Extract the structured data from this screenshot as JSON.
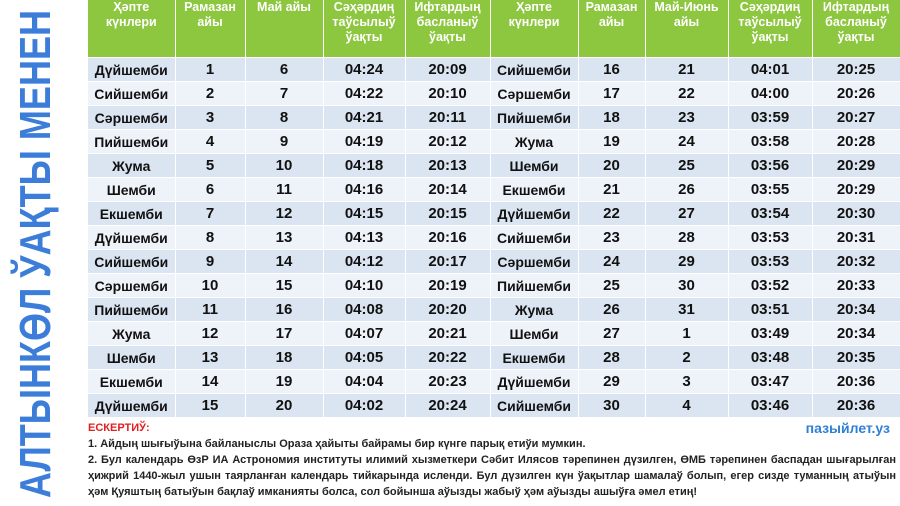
{
  "side_title": "АЛТЫНКӨЛ ЎАҚТЫ МЕНЕН",
  "table": {
    "headers": [
      "Ҳәпте күнлери",
      "Рамазан айы",
      "Май айы",
      "Сәҳәрдиң таўсылыў ўақты",
      "Ифтардың басланыў ўақты",
      "Ҳәпте күнлери",
      "Рамазан айы",
      "Май-Июнь айы",
      "Сәҳәрдиң таўсылыў ўақты",
      "Ифтардың басланыў ўақты"
    ],
    "rows": [
      [
        "Дүйшемби",
        "1",
        "6",
        "04:24",
        "20:09",
        "Сийшемби",
        "16",
        "21",
        "04:01",
        "20:25"
      ],
      [
        "Сийшемби",
        "2",
        "7",
        "04:22",
        "20:10",
        "Сәршемби",
        "17",
        "22",
        "04:00",
        "20:26"
      ],
      [
        "Сәршемби",
        "3",
        "8",
        "04:21",
        "20:11",
        "Пийшемби",
        "18",
        "23",
        "03:59",
        "20:27"
      ],
      [
        "Пийшемби",
        "4",
        "9",
        "04:19",
        "20:12",
        "Жума",
        "19",
        "24",
        "03:58",
        "20:28"
      ],
      [
        "Жума",
        "5",
        "10",
        "04:18",
        "20:13",
        "Шемби",
        "20",
        "25",
        "03:56",
        "20:29"
      ],
      [
        "Шемби",
        "6",
        "11",
        "04:16",
        "20:14",
        "Екшемби",
        "21",
        "26",
        "03:55",
        "20:29"
      ],
      [
        "Екшемби",
        "7",
        "12",
        "04:15",
        "20:15",
        "Дүйшемби",
        "22",
        "27",
        "03:54",
        "20:30"
      ],
      [
        "Дүйшемби",
        "8",
        "13",
        "04:13",
        "20:16",
        "Сийшемби",
        "23",
        "28",
        "03:53",
        "20:31"
      ],
      [
        "Сийшемби",
        "9",
        "14",
        "04:12",
        "20:17",
        "Сәршемби",
        "24",
        "29",
        "03:53",
        "20:32"
      ],
      [
        "Сәршемби",
        "10",
        "15",
        "04:10",
        "20:19",
        "Пийшемби",
        "25",
        "30",
        "03:52",
        "20:33"
      ],
      [
        "Пийшемби",
        "11",
        "16",
        "04:08",
        "20:20",
        "Жума",
        "26",
        "31",
        "03:51",
        "20:34"
      ],
      [
        "Жума",
        "12",
        "17",
        "04:07",
        "20:21",
        "Шемби",
        "27",
        "1",
        "03:49",
        "20:34"
      ],
      [
        "Шемби",
        "13",
        "18",
        "04:05",
        "20:22",
        "Екшемби",
        "28",
        "2",
        "03:48",
        "20:35"
      ],
      [
        "Екшемби",
        "14",
        "19",
        "04:04",
        "20:23",
        "Дүйшемби",
        "29",
        "3",
        "03:47",
        "20:36"
      ],
      [
        "Дүйшемби",
        "15",
        "20",
        "04:02",
        "20:24",
        "Сийшемби",
        "30",
        "4",
        "03:46",
        "20:36"
      ]
    ]
  },
  "notes": {
    "heading": "ЕСКЕРТИЎ:",
    "website": "пазыйлет.уз",
    "items": [
      "1.  Айдың шығыўына байланыслы Ораза ҳайыты байрамы бир күнге парық етиўи мумкин.",
      "2. Бул календарь ӨзР ИА Астрономия институты илимий хызметкери Сәбит Илясов тәрепинен дүзилген, ӨМБ тәрепинен баспадан шығарылған ҳижрий 1440-жыл ушын таярланған календарь тийкарында исленди. Бул дүзилген күн ўақытлар шамалаў болып, егер сизде туманның атыўын ҳәм Қуяштың батыўын бақлаў имканияты болса, сол бойынша аўызды жабыў ҳәм аўызды ашыўға әмел етиң!"
    ]
  }
}
